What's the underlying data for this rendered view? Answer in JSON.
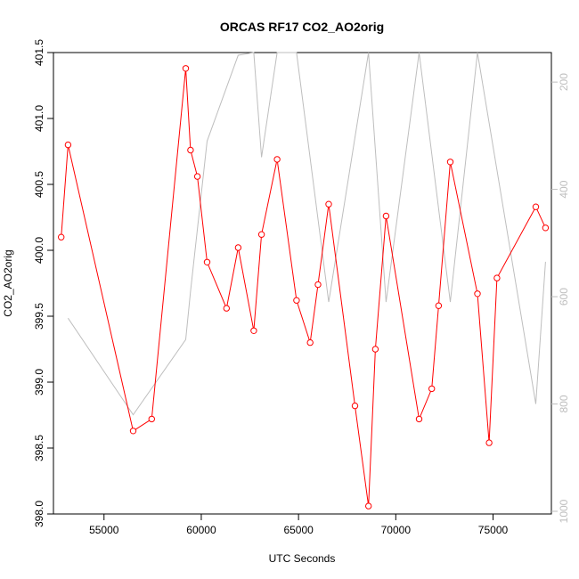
{
  "chart_data": {
    "type": "line",
    "title": "ORCAS RF17 CO2_AO2orig",
    "xlabel": "UTC Seconds",
    "ylabel": "CO2_AO2orig",
    "xlim": [
      52400,
      78000
    ],
    "ylim": [
      398.0,
      401.5
    ],
    "x_ticks": [
      55000,
      60000,
      65000,
      70000,
      75000
    ],
    "y_ticks": [
      "398.0",
      "398.5",
      "399.0",
      "399.5",
      "400.0",
      "400.5",
      "401.0",
      "401.5"
    ],
    "y2_ticks": [
      200,
      400,
      600,
      800,
      1000
    ],
    "y2lim": [
      1005,
      145
    ],
    "y2_reversed": true,
    "series": [
      {
        "color": "#ff0000",
        "marker": "open-circle",
        "x": [
          52800,
          53150,
          56500,
          57450,
          59200,
          59450,
          59800,
          60300,
          61300,
          61900,
          62700,
          63100,
          63900,
          64900,
          65600,
          66000,
          66550,
          67900,
          68600,
          68950,
          69500,
          71200,
          71850,
          72200,
          72800,
          74200,
          74800,
          75200,
          77200,
          77700
        ],
        "values": [
          400.1,
          400.8,
          398.63,
          398.72,
          401.38,
          400.76,
          400.56,
          399.91,
          399.56,
          400.02,
          399.39,
          400.12,
          400.69,
          399.62,
          399.3,
          399.74,
          400.35,
          398.82,
          398.06,
          399.25,
          400.26,
          398.72,
          398.95,
          399.58,
          400.67,
          399.67,
          398.54,
          399.79,
          400.33,
          400.17
        ]
      },
      {
        "color": "#bebebe",
        "axis": "right",
        "x": [
          53150,
          56500,
          59200,
          59450,
          60300,
          61900,
          62700,
          63100,
          63900,
          64900,
          66550,
          68600,
          69500,
          71200,
          72800,
          74200,
          77200,
          77700
        ],
        "values": [
          640,
          820,
          680,
          590,
          310,
          150,
          140,
          340,
          140,
          140,
          610,
          140,
          610,
          140,
          610,
          140,
          800,
          535
        ]
      }
    ]
  }
}
